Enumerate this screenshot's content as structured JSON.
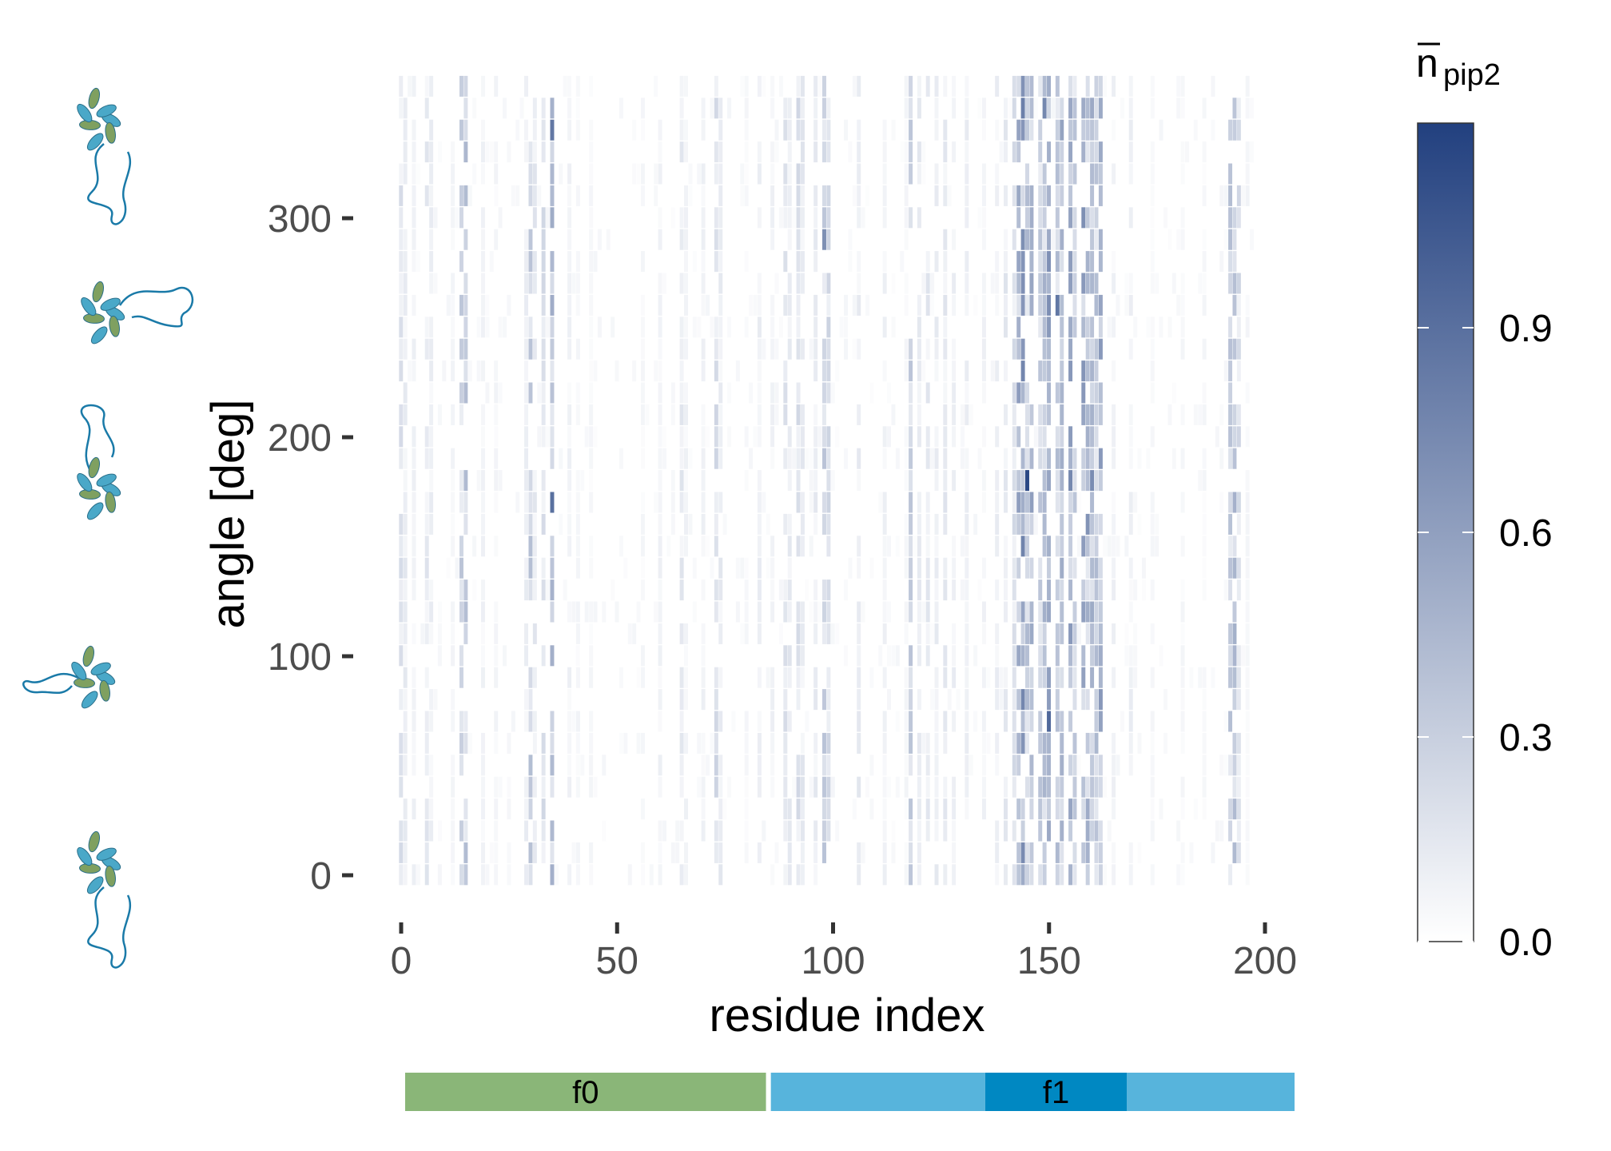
{
  "chart_data": {
    "type": "heatmap",
    "xlabel": "residue index",
    "ylabel": "angle [deg]",
    "xlim": [
      0,
      200
    ],
    "ylim": [
      0,
      360
    ],
    "x_ticks": [
      0,
      50,
      100,
      150,
      200
    ],
    "y_ticks": [
      0,
      100,
      200,
      300
    ],
    "colorbar": {
      "title": "n",
      "subscript": "pip2",
      "overline": true,
      "ticks": [
        0.0,
        0.3,
        0.6,
        0.9
      ],
      "tick_labels": [
        "0.0",
        "0.3",
        "0.6",
        "0.9"
      ],
      "range": [
        0,
        1.2
      ],
      "color_low": "#ffffff",
      "color_high": "#22407f"
    },
    "angle_step": 10,
    "residue_count": 198,
    "strong_columns": [
      {
        "residue": 0,
        "value": 0.18
      },
      {
        "residue": 1,
        "value": 0.12
      },
      {
        "residue": 3,
        "value": 0.08
      },
      {
        "residue": 6,
        "value": 0.14
      },
      {
        "residue": 7,
        "value": 0.1
      },
      {
        "residue": 12,
        "value": 0.06
      },
      {
        "residue": 14,
        "value": 0.3
      },
      {
        "residue": 15,
        "value": 0.35
      },
      {
        "residue": 19,
        "value": 0.08
      },
      {
        "residue": 22,
        "value": 0.06
      },
      {
        "residue": 29,
        "value": 0.1
      },
      {
        "residue": 30,
        "value": 0.32
      },
      {
        "residue": 31,
        "value": 0.14
      },
      {
        "residue": 33,
        "value": 0.2
      },
      {
        "residue": 35,
        "value": 0.42
      },
      {
        "residue": 39,
        "value": 0.08
      },
      {
        "residue": 41,
        "value": 0.06
      },
      {
        "residue": 44,
        "value": 0.05
      },
      {
        "residue": 56,
        "value": 0.05
      },
      {
        "residue": 60,
        "value": 0.08
      },
      {
        "residue": 65,
        "value": 0.14
      },
      {
        "residue": 66,
        "value": 0.08
      },
      {
        "residue": 70,
        "value": 0.08
      },
      {
        "residue": 73,
        "value": 0.22
      },
      {
        "residue": 74,
        "value": 0.12
      },
      {
        "residue": 80,
        "value": 0.05
      },
      {
        "residue": 83,
        "value": 0.1
      },
      {
        "residue": 86,
        "value": 0.08
      },
      {
        "residue": 89,
        "value": 0.18
      },
      {
        "residue": 90,
        "value": 0.14
      },
      {
        "residue": 92,
        "value": 0.2
      },
      {
        "residue": 93,
        "value": 0.14
      },
      {
        "residue": 96,
        "value": 0.12
      },
      {
        "residue": 98,
        "value": 0.3
      },
      {
        "residue": 99,
        "value": 0.22
      },
      {
        "residue": 106,
        "value": 0.12
      },
      {
        "residue": 112,
        "value": 0.08
      },
      {
        "residue": 117,
        "value": 0.06
      },
      {
        "residue": 118,
        "value": 0.3
      },
      {
        "residue": 120,
        "value": 0.12
      },
      {
        "residue": 122,
        "value": 0.14
      },
      {
        "residue": 124,
        "value": 0.12
      },
      {
        "residue": 126,
        "value": 0.14
      },
      {
        "residue": 128,
        "value": 0.1
      },
      {
        "residue": 131,
        "value": 0.1
      },
      {
        "residue": 135,
        "value": 0.08
      },
      {
        "residue": 138,
        "value": 0.1
      },
      {
        "residue": 140,
        "value": 0.14
      },
      {
        "residue": 142,
        "value": 0.2
      },
      {
        "residue": 143,
        "value": 0.5
      },
      {
        "residue": 144,
        "value": 0.6
      },
      {
        "residue": 145,
        "value": 0.35
      },
      {
        "residue": 146,
        "value": 0.5
      },
      {
        "residue": 148,
        "value": 0.3
      },
      {
        "residue": 149,
        "value": 0.4
      },
      {
        "residue": 150,
        "value": 0.55
      },
      {
        "residue": 152,
        "value": 0.35
      },
      {
        "residue": 153,
        "value": 0.45
      },
      {
        "residue": 155,
        "value": 0.5
      },
      {
        "residue": 156,
        "value": 0.3
      },
      {
        "residue": 158,
        "value": 0.55
      },
      {
        "residue": 159,
        "value": 0.4
      },
      {
        "residue": 160,
        "value": 0.45
      },
      {
        "residue": 161,
        "value": 0.35
      },
      {
        "residue": 162,
        "value": 0.5
      },
      {
        "residue": 165,
        "value": 0.08
      },
      {
        "residue": 169,
        "value": 0.1
      },
      {
        "residue": 174,
        "value": 0.05
      },
      {
        "residue": 181,
        "value": 0.05
      },
      {
        "residue": 186,
        "value": 0.05
      },
      {
        "residue": 192,
        "value": 0.32
      },
      {
        "residue": 193,
        "value": 0.4
      },
      {
        "residue": 194,
        "value": 0.22
      },
      {
        "residue": 196,
        "value": 0.06
      }
    ],
    "hotspots": [
      {
        "residue": 145,
        "angle": 180,
        "value": 1.15
      },
      {
        "residue": 35,
        "angle": 170,
        "value": 0.9
      },
      {
        "residue": 35,
        "angle": 340,
        "value": 0.85
      },
      {
        "residue": 150,
        "angle": 70,
        "value": 0.95
      },
      {
        "residue": 152,
        "angle": 260,
        "value": 0.85
      },
      {
        "residue": 144,
        "angle": 350,
        "value": 0.8
      },
      {
        "residue": 155,
        "angle": 180,
        "value": 0.75
      },
      {
        "residue": 160,
        "angle": 180,
        "value": 0.72
      },
      {
        "residue": 98,
        "angle": 290,
        "value": 0.7
      },
      {
        "residue": 149,
        "angle": 350,
        "value": 0.75
      },
      {
        "residue": 159,
        "angle": 160,
        "value": 0.68
      }
    ]
  },
  "domain_bar": {
    "segments": [
      {
        "label": "f0",
        "start": 0,
        "end": 84,
        "color": "#8ab678"
      },
      {
        "label": "",
        "start": 85,
        "end": 135,
        "color": "#57b4dc"
      },
      {
        "label": "f1",
        "start": 135,
        "end": 168,
        "color": "#0088c2"
      },
      {
        "label": "",
        "start": 168,
        "end": 207,
        "color": "#57b4dc"
      }
    ]
  },
  "structure_icons": [
    {
      "name": "protein-structure-0-icon"
    },
    {
      "name": "protein-structure-1-icon"
    },
    {
      "name": "protein-structure-2-icon"
    },
    {
      "name": "protein-structure-3-icon"
    },
    {
      "name": "protein-structure-4-icon"
    }
  ],
  "colors": {
    "helix": "#4aa8c8",
    "sheet": "#7fa060",
    "coil": "#1a7aa8"
  }
}
